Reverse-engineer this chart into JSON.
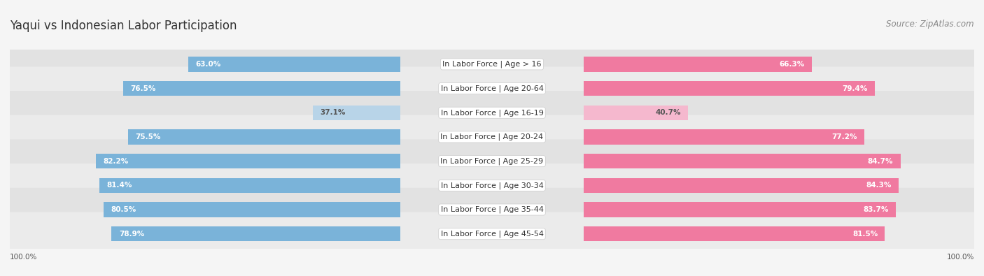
{
  "title": "Yaqui vs Indonesian Labor Participation",
  "source": "Source: ZipAtlas.com",
  "categories": [
    "In Labor Force | Age > 16",
    "In Labor Force | Age 20-64",
    "In Labor Force | Age 16-19",
    "In Labor Force | Age 20-24",
    "In Labor Force | Age 25-29",
    "In Labor Force | Age 30-34",
    "In Labor Force | Age 35-44",
    "In Labor Force | Age 45-54"
  ],
  "yaqui_values": [
    63.0,
    76.5,
    37.1,
    75.5,
    82.2,
    81.4,
    80.5,
    78.9
  ],
  "indonesian_values": [
    66.3,
    79.4,
    40.7,
    77.2,
    84.7,
    84.3,
    83.7,
    81.5
  ],
  "yaqui_color": "#7ab3d9",
  "yaqui_color_light": "#b8d4e8",
  "indonesian_color": "#f07aa0",
  "indonesian_color_light": "#f5b8ce",
  "row_color_dark": "#e2e2e2",
  "row_color_light": "#ebebeb",
  "background_color": "#f5f5f5",
  "title_fontsize": 12,
  "source_fontsize": 8.5,
  "label_fontsize": 8,
  "value_fontsize": 7.5,
  "legend_fontsize": 8.5,
  "x_label": "100.0%"
}
